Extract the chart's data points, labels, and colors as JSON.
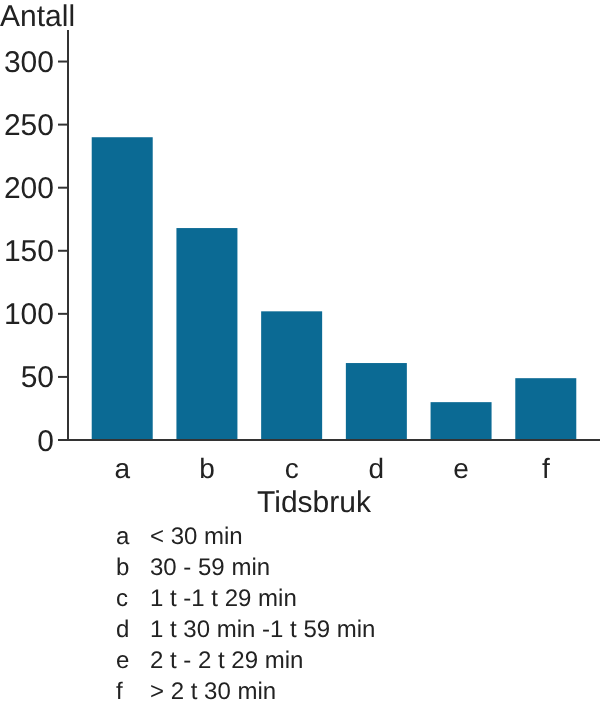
{
  "chart_data": {
    "type": "bar",
    "ylabel": "Antall",
    "xlabel": "Tidsbruk",
    "categories": [
      "a",
      "b",
      "c",
      "d",
      "e",
      "f"
    ],
    "values": [
      240,
      168,
      102,
      61,
      30,
      49
    ],
    "color": "#0b6a94",
    "ylim": [
      0,
      325
    ],
    "yticks": [
      0,
      50,
      100,
      150,
      200,
      250,
      300
    ],
    "grid": false,
    "annotations": [
      "a < 30 min",
      "b 30 - 59 min",
      "c 1 t -1 t 29 min",
      "d 1 t  30 min -1 t 59 min",
      "e 2 t - 2 t 29 min",
      "f > 2 t 30 min"
    ]
  }
}
